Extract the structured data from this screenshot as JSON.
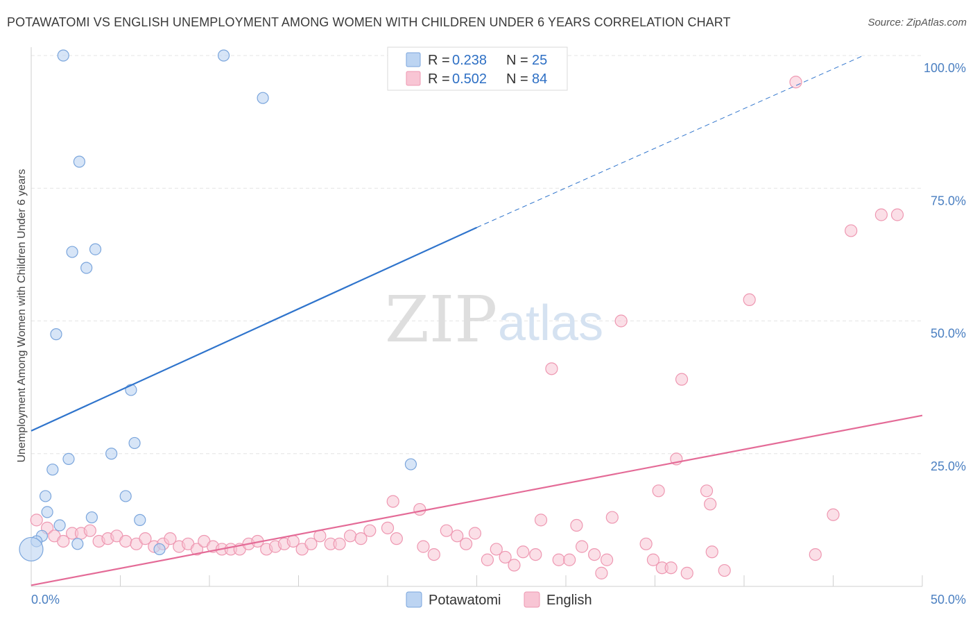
{
  "title": "POTAWATOMI VS ENGLISH UNEMPLOYMENT AMONG WOMEN WITH CHILDREN UNDER 6 YEARS CORRELATION CHART",
  "source": "Source: ZipAtlas.com",
  "watermark": {
    "zip": "ZIP",
    "atlas": "atlas"
  },
  "legend": {
    "r_label": "R =",
    "n_label": "N =",
    "rows": [
      {
        "series": "Potawatomi",
        "r": "0.238",
        "n": "25"
      },
      {
        "series": "English",
        "r": "0.502",
        "n": "84"
      }
    ]
  },
  "bottom_legend": [
    "Potawatomi",
    "English"
  ],
  "colors": {
    "potawatomi_fill": "#bcd4f2",
    "potawatomi_stroke": "#7aa5dc",
    "potawatomi_line": "#2f74cc",
    "english_fill": "#f8c5d4",
    "english_stroke": "#ee97b1",
    "english_line": "#e46b97",
    "tick": "#4a7fc1",
    "grid": "#e4e4e4"
  },
  "chart_data": {
    "type": "scatter",
    "title": "POTAWATOMI VS ENGLISH UNEMPLOYMENT AMONG WOMEN WITH CHILDREN UNDER 6 YEARS CORRELATION CHART",
    "xlabel": "",
    "ylabel": "Unemployment Among Women with Children Under 6 years",
    "xlim": [
      0,
      50
    ],
    "ylim": [
      0,
      100
    ],
    "x_tick_labels": [
      "0.0%",
      "50.0%"
    ],
    "y_tick_labels": [
      "100.0%",
      "75.0%",
      "50.0%",
      "25.0%"
    ],
    "y_ticks": [
      100,
      75,
      50,
      25
    ],
    "grid": true,
    "legend_position": "top-center",
    "series": [
      {
        "name": "Potawatomi",
        "r": 0.238,
        "n": 25,
        "trend": {
          "x": [
            0,
            25
          ],
          "y": [
            29.3,
            67.6
          ],
          "dashed_to": {
            "x": 46.7,
            "y": 100
          }
        },
        "points": [
          {
            "x": 1.8,
            "y": 100
          },
          {
            "x": 10.8,
            "y": 100
          },
          {
            "x": 13.0,
            "y": 92
          },
          {
            "x": 2.7,
            "y": 80
          },
          {
            "x": 2.3,
            "y": 63
          },
          {
            "x": 3.6,
            "y": 63.5
          },
          {
            "x": 3.1,
            "y": 60
          },
          {
            "x": 1.4,
            "y": 47.5
          },
          {
            "x": 5.6,
            "y": 37
          },
          {
            "x": 5.8,
            "y": 27
          },
          {
            "x": 4.5,
            "y": 25
          },
          {
            "x": 2.1,
            "y": 24
          },
          {
            "x": 1.2,
            "y": 22
          },
          {
            "x": 21.3,
            "y": 23
          },
          {
            "x": 5.3,
            "y": 17
          },
          {
            "x": 0.8,
            "y": 17
          },
          {
            "x": 0.9,
            "y": 14
          },
          {
            "x": 3.4,
            "y": 13
          },
          {
            "x": 6.1,
            "y": 12.5
          },
          {
            "x": 1.6,
            "y": 11.5
          },
          {
            "x": 0.6,
            "y": 9.5
          },
          {
            "x": 0.3,
            "y": 8.5
          },
          {
            "x": 2.6,
            "y": 8
          },
          {
            "x": 7.2,
            "y": 7
          },
          {
            "x": 0.0,
            "y": 7
          }
        ]
      },
      {
        "name": "English",
        "r": 0.502,
        "n": 84,
        "trend": {
          "x": [
            0,
            50
          ],
          "y": [
            0.2,
            32.2
          ]
        },
        "points": [
          {
            "x": 42.9,
            "y": 95
          },
          {
            "x": 48.6,
            "y": 70
          },
          {
            "x": 47.7,
            "y": 70
          },
          {
            "x": 46.0,
            "y": 67
          },
          {
            "x": 40.3,
            "y": 54
          },
          {
            "x": 33.1,
            "y": 50
          },
          {
            "x": 29.2,
            "y": 41
          },
          {
            "x": 36.5,
            "y": 39
          },
          {
            "x": 36.2,
            "y": 24
          },
          {
            "x": 37.9,
            "y": 18
          },
          {
            "x": 35.2,
            "y": 18
          },
          {
            "x": 38.1,
            "y": 15.5
          },
          {
            "x": 20.3,
            "y": 16
          },
          {
            "x": 21.8,
            "y": 14.5
          },
          {
            "x": 45.0,
            "y": 13.5
          },
          {
            "x": 32.6,
            "y": 13
          },
          {
            "x": 28.6,
            "y": 12.5
          },
          {
            "x": 30.6,
            "y": 11.5
          },
          {
            "x": 0.3,
            "y": 12.5
          },
          {
            "x": 0.9,
            "y": 11
          },
          {
            "x": 1.3,
            "y": 9.5
          },
          {
            "x": 1.8,
            "y": 8.5
          },
          {
            "x": 2.3,
            "y": 10
          },
          {
            "x": 2.8,
            "y": 10
          },
          {
            "x": 3.3,
            "y": 10.5
          },
          {
            "x": 3.8,
            "y": 8.5
          },
          {
            "x": 4.3,
            "y": 9
          },
          {
            "x": 4.8,
            "y": 9.5
          },
          {
            "x": 5.3,
            "y": 8.5
          },
          {
            "x": 5.9,
            "y": 8
          },
          {
            "x": 6.4,
            "y": 9
          },
          {
            "x": 6.9,
            "y": 7.5
          },
          {
            "x": 7.4,
            "y": 8
          },
          {
            "x": 7.8,
            "y": 9
          },
          {
            "x": 8.3,
            "y": 7.5
          },
          {
            "x": 8.8,
            "y": 8
          },
          {
            "x": 9.3,
            "y": 7
          },
          {
            "x": 9.7,
            "y": 8.5
          },
          {
            "x": 10.2,
            "y": 7.5
          },
          {
            "x": 10.7,
            "y": 7
          },
          {
            "x": 11.2,
            "y": 7
          },
          {
            "x": 11.7,
            "y": 7
          },
          {
            "x": 12.2,
            "y": 8
          },
          {
            "x": 12.7,
            "y": 8.5
          },
          {
            "x": 13.2,
            "y": 7
          },
          {
            "x": 13.7,
            "y": 7.5
          },
          {
            "x": 14.2,
            "y": 8
          },
          {
            "x": 14.7,
            "y": 8.5
          },
          {
            "x": 15.2,
            "y": 7
          },
          {
            "x": 15.7,
            "y": 8
          },
          {
            "x": 16.2,
            "y": 9.5
          },
          {
            "x": 16.8,
            "y": 8
          },
          {
            "x": 17.3,
            "y": 8
          },
          {
            "x": 17.9,
            "y": 9.5
          },
          {
            "x": 18.5,
            "y": 9
          },
          {
            "x": 19.0,
            "y": 10.5
          },
          {
            "x": 20.5,
            "y": 9
          },
          {
            "x": 22.0,
            "y": 7.5
          },
          {
            "x": 22.6,
            "y": 6
          },
          {
            "x": 23.3,
            "y": 10.5
          },
          {
            "x": 23.9,
            "y": 9.5
          },
          {
            "x": 24.4,
            "y": 8
          },
          {
            "x": 24.9,
            "y": 10
          },
          {
            "x": 25.6,
            "y": 5
          },
          {
            "x": 26.1,
            "y": 7
          },
          {
            "x": 26.6,
            "y": 5.5
          },
          {
            "x": 27.1,
            "y": 4
          },
          {
            "x": 27.6,
            "y": 6.5
          },
          {
            "x": 28.3,
            "y": 6
          },
          {
            "x": 29.6,
            "y": 5
          },
          {
            "x": 30.2,
            "y": 5
          },
          {
            "x": 30.9,
            "y": 7.5
          },
          {
            "x": 31.6,
            "y": 6
          },
          {
            "x": 32.0,
            "y": 2.5
          },
          {
            "x": 32.3,
            "y": 5
          },
          {
            "x": 34.5,
            "y": 8
          },
          {
            "x": 34.9,
            "y": 5
          },
          {
            "x": 35.4,
            "y": 3.5
          },
          {
            "x": 35.9,
            "y": 3.5
          },
          {
            "x": 36.8,
            "y": 2.5
          },
          {
            "x": 38.2,
            "y": 6.5
          },
          {
            "x": 38.9,
            "y": 3
          },
          {
            "x": 20.0,
            "y": 11
          },
          {
            "x": 44.0,
            "y": 6
          }
        ]
      }
    ]
  }
}
